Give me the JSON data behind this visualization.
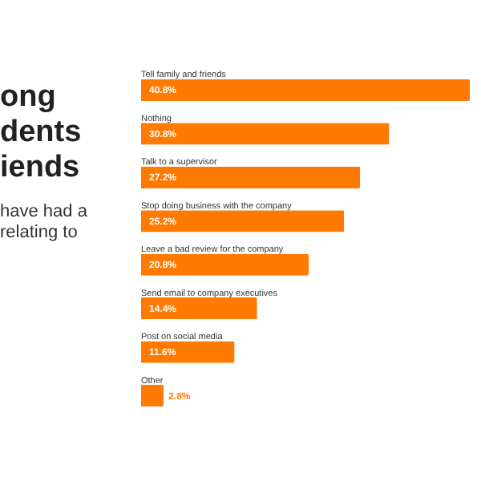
{
  "chart_data": {
    "type": "bar",
    "orientation": "horizontal",
    "xlim": [
      0,
      40.8
    ],
    "title": "ong\ndents\niends",
    "subtitle": "have had a\nrelating to",
    "categories": [
      "Tell family and friends",
      "Nothing",
      "Talk to a supervisor",
      "Stop doing business with the company",
      "Leave a bad review for the company",
      "Send email to company executives",
      "Post on social media",
      "Other"
    ],
    "values": [
      40.8,
      30.8,
      27.2,
      25.2,
      20.8,
      14.4,
      11.6,
      2.8
    ],
    "value_labels": [
      "40.8%",
      "30.8%",
      "27.2%",
      "25.2%",
      "20.8%",
      "14.4%",
      "11.6%",
      "2.8%"
    ],
    "color": "#ff7a00"
  }
}
